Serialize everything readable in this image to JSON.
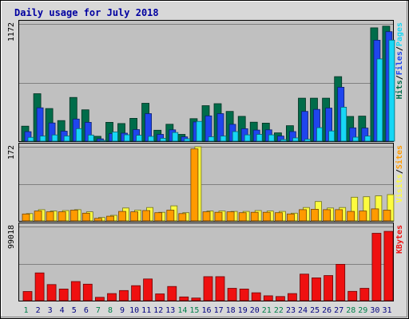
{
  "chart_data": {
    "type": "bar",
    "title": "Daily usage for July 2018",
    "categories": [
      "1",
      "2",
      "3",
      "4",
      "5",
      "6",
      "7",
      "8",
      "9",
      "10",
      "11",
      "12",
      "13",
      "14",
      "15",
      "16",
      "17",
      "18",
      "19",
      "20",
      "21",
      "22",
      "23",
      "24",
      "25",
      "26",
      "27",
      "28",
      "29",
      "30",
      "31"
    ],
    "weekend_days": [
      "1",
      "7",
      "8",
      "14",
      "15",
      "21",
      "22",
      "28",
      "29"
    ],
    "colors": {
      "title": "#0000a0",
      "hits": "#006c4a",
      "files": "#1f45ee",
      "pages": "#17d7f5",
      "visits": "#fcfc3f",
      "sites": "#ff9a00",
      "kbytes": "#ef1010",
      "weekday_label": "#000080",
      "weekend_label": "#00804a",
      "plot_bg": "#c0c0c0",
      "frame_bg": "#d8d8d8"
    },
    "panels": [
      {
        "key": "top",
        "ymax_label": "1172",
        "ylim": [
          0,
          1172
        ],
        "grid": true,
        "legend_position": "right",
        "legend": [
          {
            "label": "Pages",
            "series": "pages"
          },
          {
            "label": "/",
            "series": "sep"
          },
          {
            "label": "Files",
            "series": "files"
          },
          {
            "label": "/",
            "series": "sep"
          },
          {
            "label": "Hits",
            "series": "hits"
          }
        ],
        "series": [
          {
            "name": "Hits",
            "key": "hits",
            "values": [
              150,
              474,
              326,
              206,
              437,
              313,
              49,
              188,
              176,
              228,
              379,
              109,
              169,
              68,
              225,
              355,
              375,
              297,
              248,
              190,
              180,
              83,
              155,
              430,
              430,
              430,
              645,
              247,
              250,
              1133,
              1150
            ]
          },
          {
            "name": "Files",
            "key": "files",
            "values": [
              95,
              333,
              182,
              100,
              221,
              188,
              23,
              76,
              80,
              116,
              275,
              68,
              113,
              43,
              192,
              253,
              275,
              168,
              124,
              111,
              113,
              51,
              96,
              297,
              317,
              331,
              539,
              133,
              131,
              1009,
              1095
            ]
          },
          {
            "name": "Pages",
            "key": "pages",
            "values": [
              38,
              51,
              62,
              52,
              125,
              61,
              8,
              92,
              64,
              59,
              48,
              29,
              87,
              24,
              198,
              44,
              51,
              96,
              63,
              68,
              63,
              16,
              33,
              19,
              135,
              102,
              340,
              40,
              51,
              822,
              1010
            ]
          }
        ]
      },
      {
        "key": "middle",
        "ymax_label": "172",
        "ylim": [
          0,
          172
        ],
        "grid": true,
        "legend_position": "right",
        "legend": [
          {
            "label": "Sites",
            "series": "sites"
          },
          {
            "label": "/",
            "series": "sep"
          },
          {
            "label": "Visits",
            "series": "visits"
          }
        ],
        "series": [
          {
            "name": "Visits",
            "key": "visits",
            "values": [
              17,
              26,
              23,
              24,
              26,
              21,
              8,
              13,
              30,
              25,
              31,
              20,
              35,
              19,
              172,
              23,
              23,
              22,
              22,
              24,
              23,
              22,
              18,
              31,
              45,
              30,
              31,
              55,
              56,
              58,
              61
            ]
          },
          {
            "name": "Sites",
            "key": "sites",
            "values": [
              16,
              23,
              21,
              21,
              25,
              18,
              6,
              11,
              22,
              21,
              24,
              19,
              25,
              17,
              167,
              21,
              20,
              21,
              19,
              20,
              20,
              19,
              16,
              26,
              27,
              26,
              26,
              22,
              23,
              28,
              25
            ]
          }
        ]
      },
      {
        "key": "bottom",
        "ymax_label": "99018",
        "ylim": [
          0,
          99018
        ],
        "grid": true,
        "legend_position": "right",
        "legend": [
          {
            "label": "KBytes",
            "series": "kbytes"
          }
        ],
        "series": [
          {
            "name": "KBytes",
            "key": "kbytes",
            "values": [
              12200,
              37000,
              21500,
              15500,
              25500,
              22000,
              4500,
              9500,
              13500,
              20000,
              29000,
              9000,
              19000,
              5000,
              3500,
              32000,
              32000,
              16500,
              15500,
              10500,
              6500,
              5500,
              9500,
              35500,
              30500,
              33500,
              48500,
              12500,
              16500,
              90000,
              92500
            ]
          }
        ]
      }
    ]
  }
}
